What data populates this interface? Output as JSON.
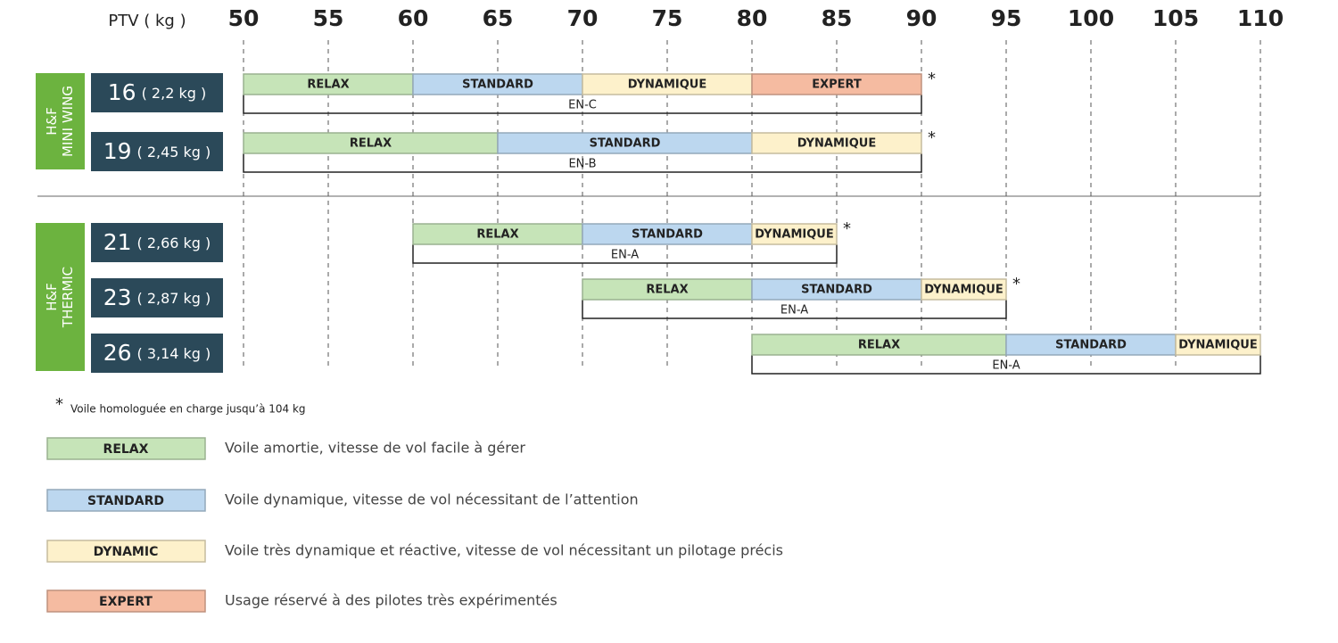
{
  "chart_data": {
    "type": "range",
    "axis_label": "PTV ( kg )",
    "xlim": [
      50,
      110
    ],
    "xticks": [
      50,
      55,
      60,
      65,
      70,
      75,
      80,
      85,
      90,
      95,
      100,
      105,
      110
    ],
    "groups": [
      {
        "label": [
          "H&F",
          "MINI WING"
        ],
        "color": "#6cb33f",
        "rows": [
          {
            "size": "16",
            "weight": "( 2,2 kg )",
            "note": "*",
            "cert": "EN-C",
            "cert_range": [
              50,
              90
            ],
            "segments": [
              {
                "name": "RELAX",
                "start": 50,
                "end": 60,
                "color": "#c6e4b8"
              },
              {
                "name": "STANDARD",
                "start": 60,
                "end": 70,
                "color": "#bcd7ef"
              },
              {
                "name": "DYNAMIQUE",
                "start": 70,
                "end": 80,
                "color": "#fdf1cb"
              },
              {
                "name": "EXPERT",
                "start": 80,
                "end": 90,
                "color": "#f5bba1"
              }
            ]
          },
          {
            "size": "19",
            "weight": "( 2,45 kg )",
            "note": "*",
            "cert": "EN-B",
            "cert_range": [
              50,
              90
            ],
            "segments": [
              {
                "name": "RELAX",
                "start": 50,
                "end": 65,
                "color": "#c6e4b8"
              },
              {
                "name": "STANDARD",
                "start": 65,
                "end": 80,
                "color": "#bcd7ef"
              },
              {
                "name": "DYNAMIQUE",
                "start": 80,
                "end": 90,
                "color": "#fdf1cb"
              }
            ]
          }
        ]
      },
      {
        "label": [
          "H&F",
          "THERMIC"
        ],
        "color": "#6cb33f",
        "rows": [
          {
            "size": "21",
            "weight": "( 2,66 kg )",
            "note": "*",
            "cert": "EN-A",
            "cert_range": [
              60,
              85
            ],
            "segments": [
              {
                "name": "RELAX",
                "start": 60,
                "end": 70,
                "color": "#c6e4b8"
              },
              {
                "name": "STANDARD",
                "start": 70,
                "end": 80,
                "color": "#bcd7ef"
              },
              {
                "name": "DYNAMIQUE",
                "start": 80,
                "end": 85,
                "color": "#fdf1cb"
              }
            ]
          },
          {
            "size": "23",
            "weight": "( 2,87 kg )",
            "note": "*",
            "cert": "EN-A",
            "cert_range": [
              70,
              95
            ],
            "segments": [
              {
                "name": "RELAX",
                "start": 70,
                "end": 80,
                "color": "#c6e4b8"
              },
              {
                "name": "STANDARD",
                "start": 80,
                "end": 90,
                "color": "#bcd7ef"
              },
              {
                "name": "DYNAMIQUE",
                "start": 90,
                "end": 95,
                "color": "#fdf1cb"
              }
            ]
          },
          {
            "size": "26",
            "weight": "( 3,14 kg )",
            "cert": "EN-A",
            "cert_range": [
              80,
              110
            ],
            "segments": [
              {
                "name": "RELAX",
                "start": 80,
                "end": 95,
                "color": "#c6e4b8"
              },
              {
                "name": "STANDARD",
                "start": 95,
                "end": 105,
                "color": "#bcd7ef"
              },
              {
                "name": "DYNAMIQUE",
                "start": 105,
                "end": 110,
                "color": "#fdf1cb"
              }
            ]
          }
        ]
      }
    ],
    "footnote": {
      "mark": "*",
      "text": "Voile homologuée en charge jusqu’à 104 kg"
    },
    "legend": [
      {
        "name": "RELAX",
        "color": "#c6e4b8",
        "description": "Voile amortie, vitesse de vol facile à gérer"
      },
      {
        "name": "STANDARD",
        "color": "#bcd7ef",
        "description": "Voile dynamique, vitesse de vol nécessitant de l’attention"
      },
      {
        "name": "DYNAMIC",
        "color": "#fdf1cb",
        "description": "Voile très dynamique et réactive, vitesse de vol nécessitant un pilotage précis"
      },
      {
        "name": "EXPERT",
        "color": "#f5bba1",
        "description": "Usage réservé à des pilotes très expérimentés"
      }
    ]
  }
}
